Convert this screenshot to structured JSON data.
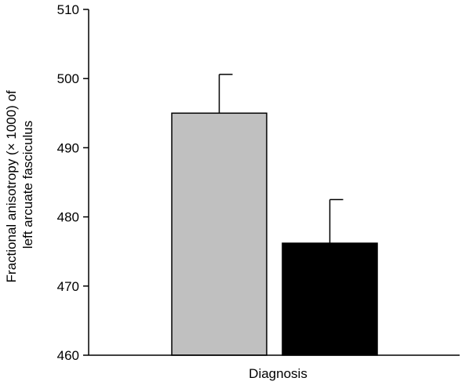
{
  "chart_data": {
    "type": "bar",
    "title": "",
    "xlabel": "Diagnosis",
    "ylabel_lines": [
      "Fractional anisotropy (× 1000) of",
      "left arcuate fasciculus"
    ],
    "ylim": [
      460,
      510
    ],
    "yticks": [
      460,
      470,
      480,
      490,
      500,
      510
    ],
    "grid": false,
    "legend": "none",
    "bars": [
      {
        "value": 495,
        "error": 5.6,
        "color": "#c0c0c0"
      },
      {
        "value": 476.2,
        "error": 6.3,
        "color": "#000000"
      }
    ]
  }
}
